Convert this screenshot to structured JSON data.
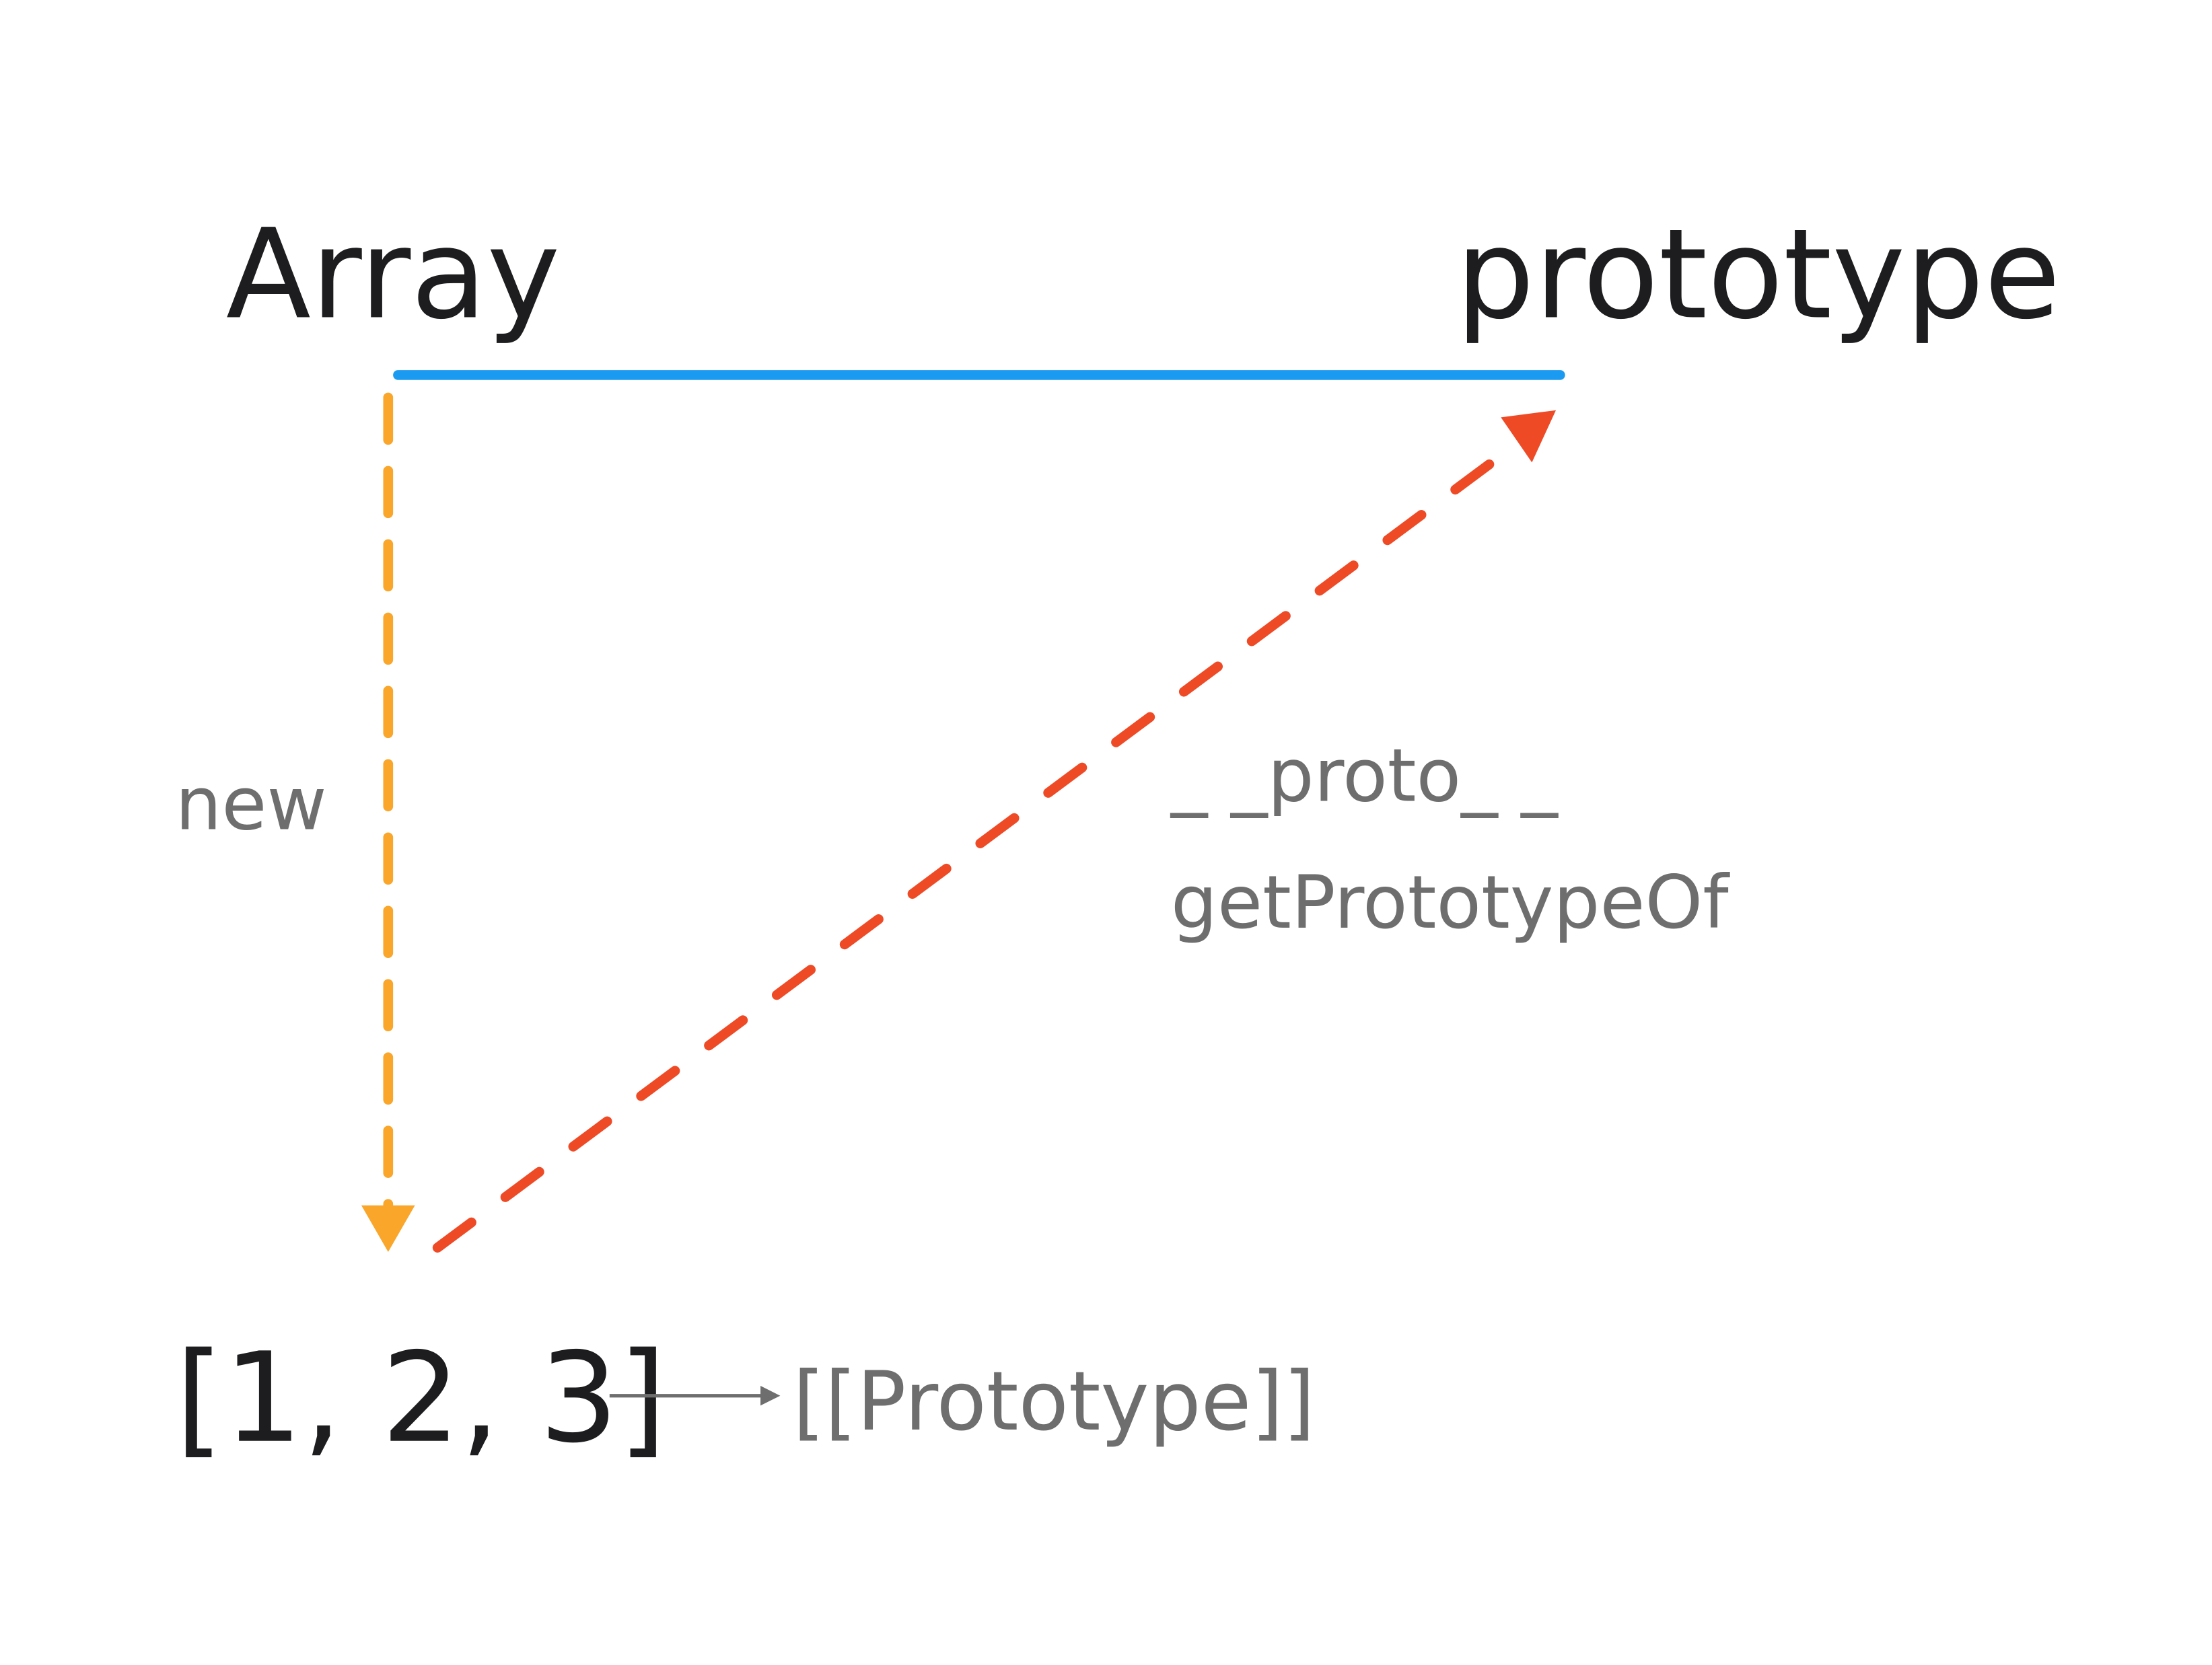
{
  "nodes": [
    {
      "label": "Array"
    },
    {
      "label": "prototype"
    },
    {
      "label": "[1, 2, 3]"
    },
    {
      "label": "[[Prototype]]"
    }
  ],
  "edges": [
    {
      "label": "new"
    },
    {
      "labels": [
        "_ _proto_ _",
        "getPrototypeOf"
      ]
    }
  ]
}
